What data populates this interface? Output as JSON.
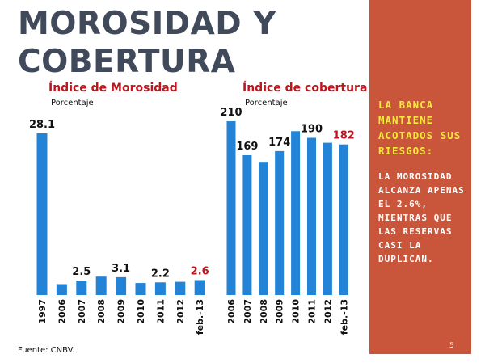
{
  "slide": {
    "title_line1": "MOROSIDAD Y",
    "title_line2": "COBERTURA",
    "source": "Fuente: CNBV.",
    "page_number": "5"
  },
  "side_panel": {
    "color": "#c9563a",
    "headline": "LA BANCA MANTIENE ACOTADOS SUS RIESGOS:",
    "headline_color": "#f5e93c",
    "body": "LA MOROSIDAD ALCANZA APENAS EL 2.6%, MIENTRAS QUE LAS RESERVAS CASI LA DUPLICAN."
  },
  "chart_data": [
    {
      "type": "bar",
      "title": "Índice de Morosidad",
      "subtitle": "Porcentaje",
      "categories": [
        "1997",
        "2006",
        "2007",
        "2008",
        "2009",
        "2010",
        "2011",
        "2012",
        "feb.-13"
      ],
      "values": [
        28.1,
        1.9,
        2.5,
        3.2,
        3.1,
        2.1,
        2.2,
        2.3,
        2.6
      ],
      "data_labels": [
        "28.1",
        "",
        "2.5",
        "",
        "3.1",
        "",
        "2.2",
        "",
        "2.6"
      ],
      "highlight_label": "feb.-13",
      "ylim": [
        0,
        28.1
      ],
      "bar_color": "#2383d6",
      "label_color": "#111111",
      "highlight_color": "#c0141e",
      "grid": false
    },
    {
      "type": "bar",
      "title": "Índice de cobertura",
      "subtitle": "Porcentaje",
      "categories": [
        "2006",
        "2007",
        "2008",
        "2009",
        "2010",
        "2011",
        "2012",
        "feb.-13"
      ],
      "values": [
        210,
        169,
        161,
        174,
        198,
        190,
        184,
        182
      ],
      "data_labels": [
        "210",
        "169",
        "",
        "174",
        "",
        "190",
        "",
        "182"
      ],
      "highlight_label": "feb.-13",
      "ylim": [
        0,
        210
      ],
      "bar_color": "#2383d6",
      "label_color": "#111111",
      "highlight_color": "#c0141e",
      "grid": false
    }
  ]
}
